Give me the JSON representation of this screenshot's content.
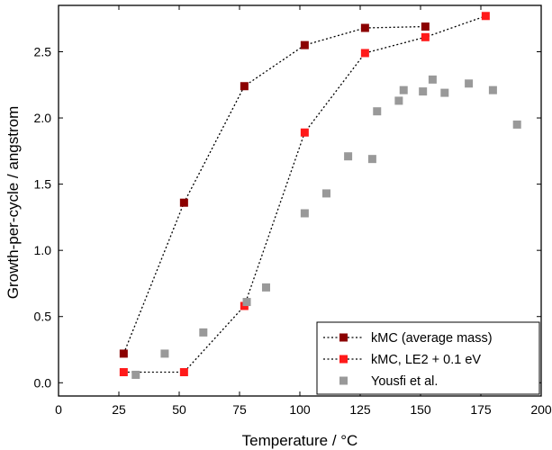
{
  "chart_data": {
    "type": "scatter",
    "title": "",
    "xlabel": "Temperature / °C",
    "ylabel": "Growth-per-cycle / angstrom",
    "xlim": [
      0,
      200
    ],
    "ylim": [
      -0.1,
      2.85
    ],
    "xticks": [
      0,
      25,
      50,
      75,
      100,
      125,
      150,
      175,
      200
    ],
    "yticks": [
      0.0,
      0.5,
      1.0,
      1.5,
      2.0,
      2.5
    ],
    "grid": false,
    "legend_position": "bottom-right",
    "series": [
      {
        "name": "kMC (average mass)",
        "color": "#8b0000",
        "marker": "square",
        "line": "dotted",
        "x": [
          27,
          52,
          77,
          102,
          127,
          152
        ],
        "y": [
          0.22,
          1.36,
          2.24,
          2.55,
          2.68,
          2.69
        ]
      },
      {
        "name": "kMC, LE2 + 0.1 eV",
        "color": "#ff1a1a",
        "marker": "square",
        "line": "dotted",
        "x": [
          27,
          52,
          77,
          102,
          127,
          152,
          177
        ],
        "y": [
          0.08,
          0.08,
          0.58,
          1.89,
          2.49,
          2.61,
          2.77
        ]
      },
      {
        "name": "Yousfi et al.",
        "color": "#999999",
        "marker": "square",
        "line": "none",
        "x": [
          32,
          44,
          60,
          78,
          86,
          102,
          111,
          120,
          130,
          132,
          141,
          143,
          151,
          155,
          160,
          170,
          180,
          190
        ],
        "y": [
          0.06,
          0.22,
          0.38,
          0.61,
          0.72,
          1.28,
          1.43,
          1.71,
          1.69,
          2.05,
          2.13,
          2.21,
          2.2,
          2.29,
          2.19,
          2.26,
          2.21,
          1.95
        ]
      }
    ]
  }
}
